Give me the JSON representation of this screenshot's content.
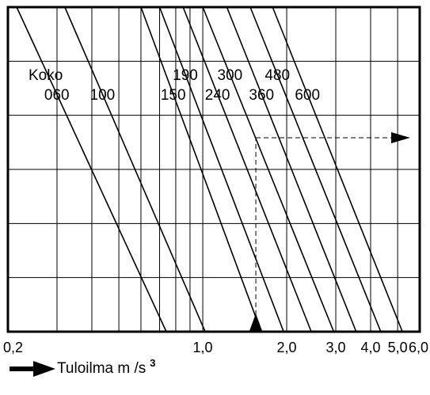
{
  "chart_data": {
    "type": "line",
    "x_scale": "log",
    "xlim": [
      0.2,
      6.0
    ],
    "x_ticks": [
      {
        "value": 0.2,
        "label": "0,2"
      },
      {
        "value": 1.0,
        "label": "1,0"
      },
      {
        "value": 2.0,
        "label": "2,0"
      },
      {
        "value": 3.0,
        "label": "3,0"
      },
      {
        "value": 4.0,
        "label": "4,0"
      },
      {
        "value": 5.0,
        "label": "5,0"
      },
      {
        "value": 6.0,
        "label": "6,0"
      }
    ],
    "xlabel": "Tuloilma m /s",
    "xlabel_sup": "3",
    "ylabel": "",
    "y_ticks": [],
    "legend_title": "Koko",
    "grid": true,
    "series": [
      {
        "name": "060",
        "x": [
          0.215,
          0.74
        ]
      },
      {
        "name": "100",
        "x": [
          0.32,
          1.02
        ]
      },
      {
        "name": "150",
        "x": [
          0.6,
          1.62
        ]
      },
      {
        "name": "190",
        "x": [
          0.7,
          1.95
        ]
      },
      {
        "name": "240",
        "x": [
          0.85,
          2.45
        ]
      },
      {
        "name": "300",
        "x": [
          1.0,
          2.95
        ]
      },
      {
        "name": "360",
        "x": [
          1.22,
          3.55
        ]
      },
      {
        "name": "480",
        "x": [
          1.48,
          4.35
        ]
      },
      {
        "name": "600",
        "x": [
          1.78,
          5.2
        ]
      }
    ],
    "example_reading": {
      "x": 1.55
    }
  },
  "colors": {
    "line": "#000000",
    "background": "#ffffff"
  }
}
